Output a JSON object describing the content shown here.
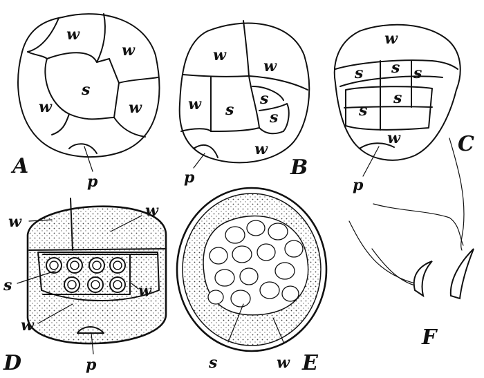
{
  "panels": {
    "A": {
      "caption": "A",
      "cells": [
        "w",
        "w",
        "s",
        "w",
        "w"
      ],
      "pore": "p"
    },
    "B": {
      "caption": "B",
      "cells": [
        "w",
        "w",
        "w",
        "s",
        "s",
        "s",
        "w"
      ],
      "pore": "p"
    },
    "C": {
      "caption": "C",
      "cells": [
        "w",
        "s",
        "s",
        "s",
        "s",
        "s",
        "w"
      ],
      "pore": "p"
    },
    "D": {
      "caption": "D",
      "labels": [
        "w",
        "w",
        "s",
        "w",
        "w"
      ],
      "pore": "p"
    },
    "E": {
      "caption": "E",
      "labels": [
        "s",
        "w"
      ]
    },
    "F": {
      "caption": "F"
    }
  }
}
